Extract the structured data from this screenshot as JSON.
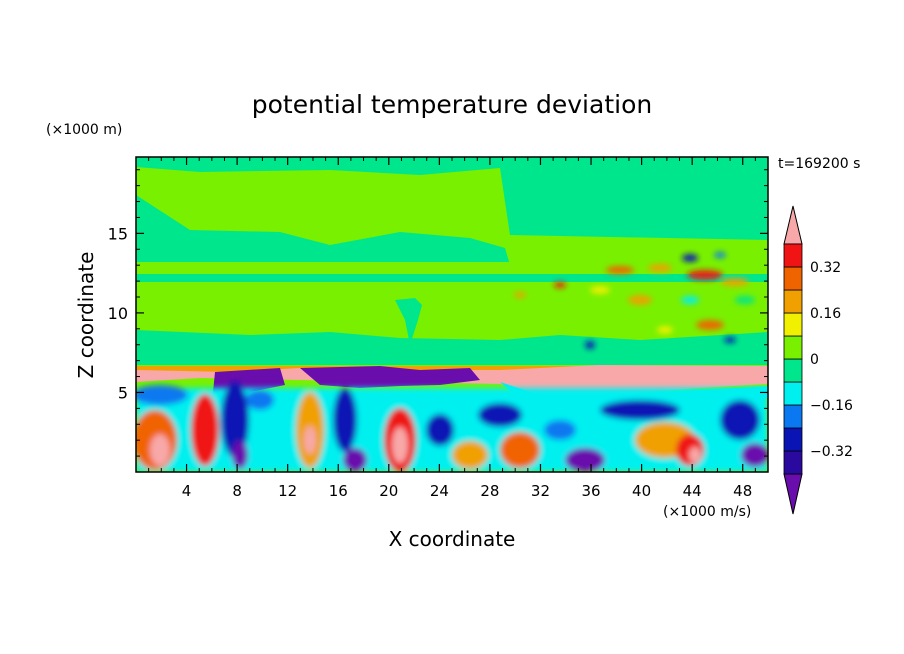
{
  "chart_data": {
    "type": "heatmap",
    "title": "potential temperature deviation",
    "xlabel": "X coordinate",
    "ylabel": "Z coordinate",
    "x_unit": "(×1000 m/s)",
    "y_unit": "(×1000 m)",
    "time_label": "t=169200 s",
    "xlim": [
      0,
      50
    ],
    "ylim": [
      0,
      19.8
    ],
    "x_ticks": [
      4,
      8,
      12,
      16,
      20,
      24,
      28,
      32,
      36,
      40,
      44,
      48
    ],
    "y_ticks": [
      5,
      10,
      15
    ],
    "colorbar": {
      "levels": [
        -0.4,
        -0.32,
        -0.24,
        -0.16,
        -0.08,
        0,
        0.08,
        0.16,
        0.24,
        0.32,
        0.4
      ],
      "tick_labels": [
        "0.32",
        "0.16",
        "0",
        "−0.16",
        "−0.32"
      ],
      "tick_values": [
        0.32,
        0.16,
        0,
        -0.16,
        -0.32
      ],
      "colors": [
        "#6a0dad",
        "#2a0a9e",
        "#0a14b4",
        "#0a78f0",
        "#00f0f0",
        "#00e68c",
        "#78f000",
        "#f0f000",
        "#f0a000",
        "#f06400",
        "#f01414",
        "#f8a8a8"
      ],
      "extend": "both"
    },
    "field_description_values": {
      "upper_band": 0.04,
      "lower_band": -0.04,
      "inversion_layer": 0.4
    }
  },
  "colors": {
    "positive_light": "#78f000",
    "near_zero_neg": "#00e68c",
    "strong_pos": "#f8a8a8",
    "strong_neg": "#6a0dad"
  }
}
